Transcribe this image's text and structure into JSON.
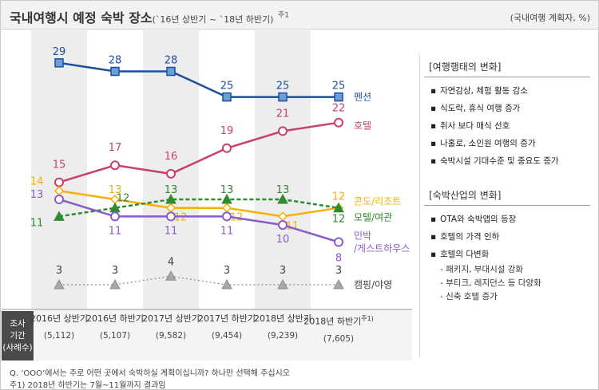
{
  "header": {
    "title": "국내여행시 예정 숙박 장소",
    "subtitle": "(`16년 상반기 ~ `18년 하반기)",
    "footnote_mark": "주1",
    "unit": "(국내여행 계획자, %)"
  },
  "chart_data": {
    "type": "line",
    "categories": [
      "2016년 상반기",
      "2016년 하반기",
      "2017년 상반기",
      "2017년 하반기",
      "2018년 상반기",
      "2018년 하반기"
    ],
    "sample_sizes": [
      "(5,112)",
      "(5,107)",
      "(9,582)",
      "(9,454)",
      "(9,239)",
      "(7,605)"
    ],
    "series": [
      {
        "name": "펜션",
        "values": [
          29,
          28,
          28,
          25,
          25,
          25
        ],
        "color": "#1f4e9c",
        "marker": "square",
        "style": "solid"
      },
      {
        "name": "호텔",
        "values": [
          15,
          17,
          16,
          19,
          21,
          22
        ],
        "color": "#c8416a",
        "marker": "circle",
        "style": "solid"
      },
      {
        "name": "콘도/리조트",
        "values": [
          14,
          13,
          12,
          12,
          11,
          12
        ],
        "color": "#f5b000",
        "marker": "diamond",
        "style": "solid"
      },
      {
        "name": "모텔/여관",
        "values": [
          11,
          12,
          13,
          13,
          13,
          12
        ],
        "color": "#2e8b2e",
        "marker": "triangle",
        "style": "dashed"
      },
      {
        "name": "민박/게스트하우스",
        "values": [
          13,
          11,
          11,
          11,
          10,
          8
        ],
        "color": "#8a5cc8",
        "marker": "circle",
        "style": "solid"
      },
      {
        "name": "캠핑/야영",
        "values": [
          3,
          3,
          4,
          3,
          3,
          3
        ],
        "color": "#8c8c8c",
        "marker": "triangle",
        "style": "dotted"
      }
    ]
  },
  "axis": {
    "sample_label": "조사기간 (사례수)",
    "last_period_note": "주1)"
  },
  "panel_travel": {
    "heading": "[여행행태의 변화]",
    "items": [
      "자연감상, 체험 활동 감소",
      "식도락, 휴식 여행 증가",
      "취사 보다 매식 선호",
      "나홀로, 소인원 여행의 증가",
      "숙박시설 기대수준 및 중요도 증가"
    ]
  },
  "panel_industry": {
    "heading": "[숙박산업의 변화]",
    "items": [
      "OTA와 숙박앱의 등장",
      "호텔의 가격 인하",
      "호텔의 다변화"
    ],
    "subitems": [
      "- 패키지, 부대시설 강화",
      "- 부티크, 레지던스 등 다양화",
      "- 신축 호텔 증가"
    ]
  },
  "footer": {
    "question": "Q. ‘OOO’에서는 주로 어떤 곳에서 숙박하실 계획이십니까? 하나만 선택해 주십시오",
    "note": "주1) 2018년 하반기는 7월~11월까지 결과임"
  }
}
